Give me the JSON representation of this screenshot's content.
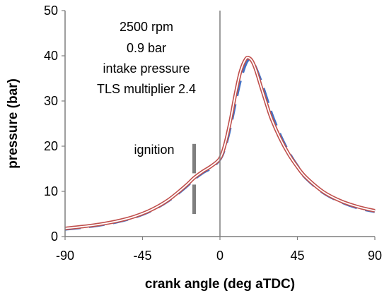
{
  "chart_data": {
    "type": "line",
    "title": "",
    "xlabel": "crank angle (deg aTDC)",
    "ylabel": "pressure (bar)",
    "xlim": [
      -90,
      90
    ],
    "ylim": [
      0,
      50
    ],
    "xticks": [
      -90,
      -45,
      0,
      45,
      90
    ],
    "yticks": [
      0,
      10,
      20,
      30,
      40,
      50
    ],
    "grid": false,
    "legend": "none",
    "annotation_lines": [
      "2500 rpm",
      "0.9 bar",
      "intake pressure",
      "TLS multiplier 2.4"
    ],
    "ignition_label": "ignition",
    "ignition_marker": {
      "x": -15,
      "y_ranges": [
        [
          5,
          11.5
        ],
        [
          14,
          20.5
        ]
      ]
    },
    "series": [
      {
        "style": "measured",
        "color": "#4472C4",
        "dash": true,
        "x": [
          -90,
          -80,
          -70,
          -60,
          -50,
          -40,
          -30,
          -20,
          -15,
          -10,
          -5,
          0,
          3,
          6,
          9,
          12,
          15,
          17,
          19,
          21,
          24,
          27,
          30,
          35,
          40,
          45,
          50,
          60,
          70,
          80,
          90
        ],
        "y": [
          1.7,
          2.1,
          2.6,
          3.3,
          4.3,
          5.8,
          8.0,
          11.0,
          12.8,
          14.2,
          15.3,
          17.2,
          20.0,
          24.5,
          30.0,
          35.0,
          38.4,
          39.2,
          38.5,
          37.0,
          34.0,
          30.5,
          27.0,
          22.3,
          18.5,
          15.5,
          13.0,
          9.8,
          7.8,
          6.4,
          5.6
        ]
      },
      {
        "style": "model",
        "color": "#C0504D",
        "dash": false,
        "x": [
          -90,
          -80,
          -70,
          -60,
          -50,
          -40,
          -30,
          -20,
          -15,
          -10,
          -5,
          0,
          3,
          6,
          9,
          12,
          15,
          17,
          19,
          21,
          24,
          27,
          30,
          35,
          40,
          45,
          50,
          60,
          70,
          80,
          90
        ],
        "y": [
          1.8,
          2.2,
          2.7,
          3.4,
          4.4,
          5.9,
          8.1,
          11.2,
          13.0,
          14.4,
          15.6,
          17.3,
          20.5,
          25.5,
          31.5,
          36.6,
          39.3,
          39.5,
          38.6,
          36.7,
          33.0,
          29.4,
          26.0,
          21.7,
          18.2,
          15.4,
          13.1,
          9.9,
          7.9,
          6.6,
          5.7
        ]
      }
    ]
  }
}
